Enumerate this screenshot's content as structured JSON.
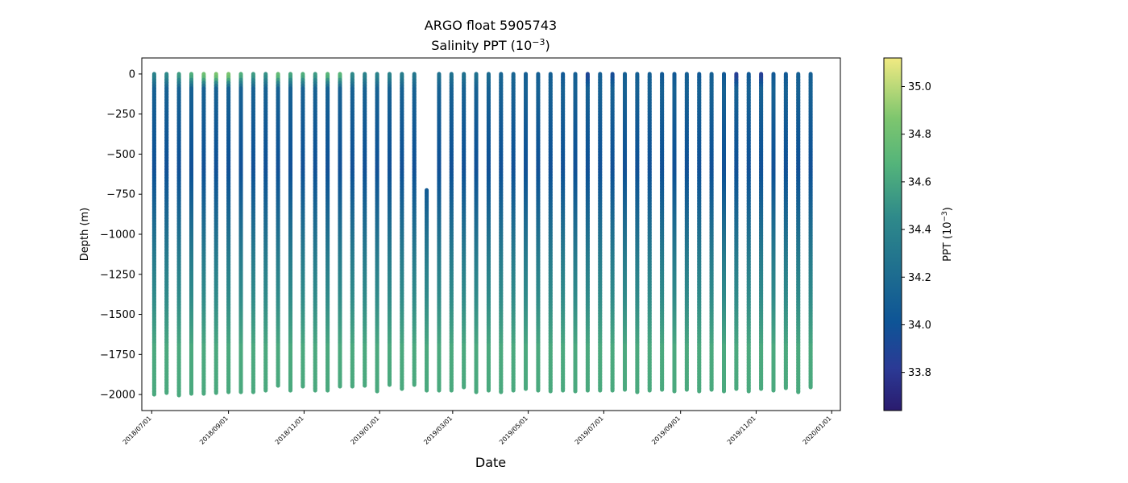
{
  "chart_data": {
    "type": "scatter",
    "title": "ARGO float 5905743",
    "subtitle_main": "Salinity PPT (10",
    "subtitle_exp": "−3",
    "subtitle_end": ")",
    "xlabel": "Date",
    "ylabel": "Depth (m)",
    "colorbar_label_main": "PPT (10",
    "colorbar_label_exp": "−3",
    "colorbar_label_end": ")",
    "xlim": [
      "2018-06-23",
      "2020-01-08"
    ],
    "ylim": [
      -2100,
      100
    ],
    "x_ticks": [
      "2018/07/01",
      "2018/09/01",
      "2018/11/01",
      "2019/01/01",
      "2019/03/01",
      "2019/05/01",
      "2019/07/01",
      "2019/09/01",
      "2019/11/01",
      "2020/01/01"
    ],
    "x_tick_dates": [
      "2018-07-01",
      "2018-09-01",
      "2018-11-01",
      "2019-01-01",
      "2019-03-01",
      "2019-05-01",
      "2019-07-01",
      "2019-09-01",
      "2019-11-01",
      "2020-01-01"
    ],
    "y_ticks": [
      0,
      -250,
      -500,
      -750,
      -1000,
      -1250,
      -1500,
      -1750,
      -2000
    ],
    "colorbar_range": [
      33.64,
      35.12
    ],
    "colorbar_ticks": [
      33.8,
      34.0,
      34.2,
      34.4,
      34.6,
      34.8,
      35.0
    ],
    "colormap": "summer-to-indigo",
    "colors": {
      "low": "#2a1b6e",
      "mid_low": "#0e5496",
      "mid": "#2f8a8a",
      "mid_high": "#54b47a",
      "high": "#f1ea82"
    },
    "profiles": [
      {
        "date": "2018-07-03",
        "max_depth": -2000,
        "surface": 34.4
      },
      {
        "date": "2018-07-13",
        "max_depth": -1990,
        "surface": 34.45
      },
      {
        "date": "2018-07-23",
        "max_depth": -2005,
        "surface": 34.55
      },
      {
        "date": "2018-08-02",
        "max_depth": -1995,
        "surface": 34.65
      },
      {
        "date": "2018-08-12",
        "max_depth": -1995,
        "surface": 34.8
      },
      {
        "date": "2018-08-22",
        "max_depth": -1990,
        "surface": 34.85
      },
      {
        "date": "2018-09-01",
        "max_depth": -1985,
        "surface": 34.85
      },
      {
        "date": "2018-09-11",
        "max_depth": -1985,
        "surface": 34.65
      },
      {
        "date": "2018-09-21",
        "max_depth": -1985,
        "surface": 34.55
      },
      {
        "date": "2018-10-01",
        "max_depth": -1975,
        "surface": 34.5
      },
      {
        "date": "2018-10-11",
        "max_depth": -1945,
        "surface": 34.75
      },
      {
        "date": "2018-10-21",
        "max_depth": -1975,
        "surface": 34.6
      },
      {
        "date": "2018-10-31",
        "max_depth": -1950,
        "surface": 34.65
      },
      {
        "date": "2018-11-10",
        "max_depth": -1975,
        "surface": 34.55
      },
      {
        "date": "2018-11-20",
        "max_depth": -1975,
        "surface": 34.7
      },
      {
        "date": "2018-11-30",
        "max_depth": -1950,
        "surface": 34.7
      },
      {
        "date": "2018-12-10",
        "max_depth": -1950,
        "surface": 34.45
      },
      {
        "date": "2018-12-20",
        "max_depth": -1945,
        "surface": 34.4
      },
      {
        "date": "2018-12-30",
        "max_depth": -1980,
        "surface": 34.4
      },
      {
        "date": "2019-01-09",
        "max_depth": -1940,
        "surface": 34.4
      },
      {
        "date": "2019-01-19",
        "max_depth": -1965,
        "surface": 34.35
      },
      {
        "date": "2019-01-29",
        "max_depth": -1940,
        "surface": 34.3
      },
      {
        "date": "2019-02-08",
        "max_depth": -1975,
        "surface": 34.3,
        "top_depth": -725
      },
      {
        "date": "2019-02-18",
        "max_depth": -1975,
        "surface": 34.25
      },
      {
        "date": "2019-02-28",
        "max_depth": -1975,
        "surface": 34.25
      },
      {
        "date": "2019-03-10",
        "max_depth": -1955,
        "surface": 34.25
      },
      {
        "date": "2019-03-20",
        "max_depth": -1985,
        "surface": 34.25
      },
      {
        "date": "2019-03-30",
        "max_depth": -1975,
        "surface": 34.2
      },
      {
        "date": "2019-04-09",
        "max_depth": -1985,
        "surface": 34.15
      },
      {
        "date": "2019-04-19",
        "max_depth": -1975,
        "surface": 34.15
      },
      {
        "date": "2019-04-29",
        "max_depth": -1965,
        "surface": 34.1
      },
      {
        "date": "2019-05-09",
        "max_depth": -1975,
        "surface": 34.1
      },
      {
        "date": "2019-05-19",
        "max_depth": -1980,
        "surface": 34.1
      },
      {
        "date": "2019-05-29",
        "max_depth": -1975,
        "surface": 34.05
      },
      {
        "date": "2019-06-08",
        "max_depth": -1980,
        "surface": 34.1
      },
      {
        "date": "2019-06-18",
        "max_depth": -1975,
        "surface": 33.9
      },
      {
        "date": "2019-06-28",
        "max_depth": -1975,
        "surface": 34.1
      },
      {
        "date": "2019-07-08",
        "max_depth": -1975,
        "surface": 33.95
      },
      {
        "date": "2019-07-18",
        "max_depth": -1970,
        "surface": 34.1
      },
      {
        "date": "2019-07-28",
        "max_depth": -1985,
        "surface": 34.1
      },
      {
        "date": "2019-08-07",
        "max_depth": -1975,
        "surface": 34.1
      },
      {
        "date": "2019-08-17",
        "max_depth": -1970,
        "surface": 34.05
      },
      {
        "date": "2019-08-27",
        "max_depth": -1980,
        "surface": 34.05
      },
      {
        "date": "2019-09-06",
        "max_depth": -1970,
        "surface": 34.1
      },
      {
        "date": "2019-09-16",
        "max_depth": -1980,
        "surface": 34.05
      },
      {
        "date": "2019-09-26",
        "max_depth": -1970,
        "surface": 34.1
      },
      {
        "date": "2019-10-06",
        "max_depth": -1980,
        "surface": 34.05
      },
      {
        "date": "2019-10-16",
        "max_depth": -1965,
        "surface": 33.85
      },
      {
        "date": "2019-10-26",
        "max_depth": -1980,
        "surface": 34.05
      },
      {
        "date": "2019-11-05",
        "max_depth": -1965,
        "surface": 33.85
      },
      {
        "date": "2019-11-15",
        "max_depth": -1975,
        "surface": 34.05
      },
      {
        "date": "2019-11-25",
        "max_depth": -1960,
        "surface": 34.05
      },
      {
        "date": "2019-12-05",
        "max_depth": -1985,
        "surface": 34.1
      },
      {
        "date": "2019-12-15",
        "max_depth": -1955,
        "surface": 34.1
      }
    ]
  }
}
